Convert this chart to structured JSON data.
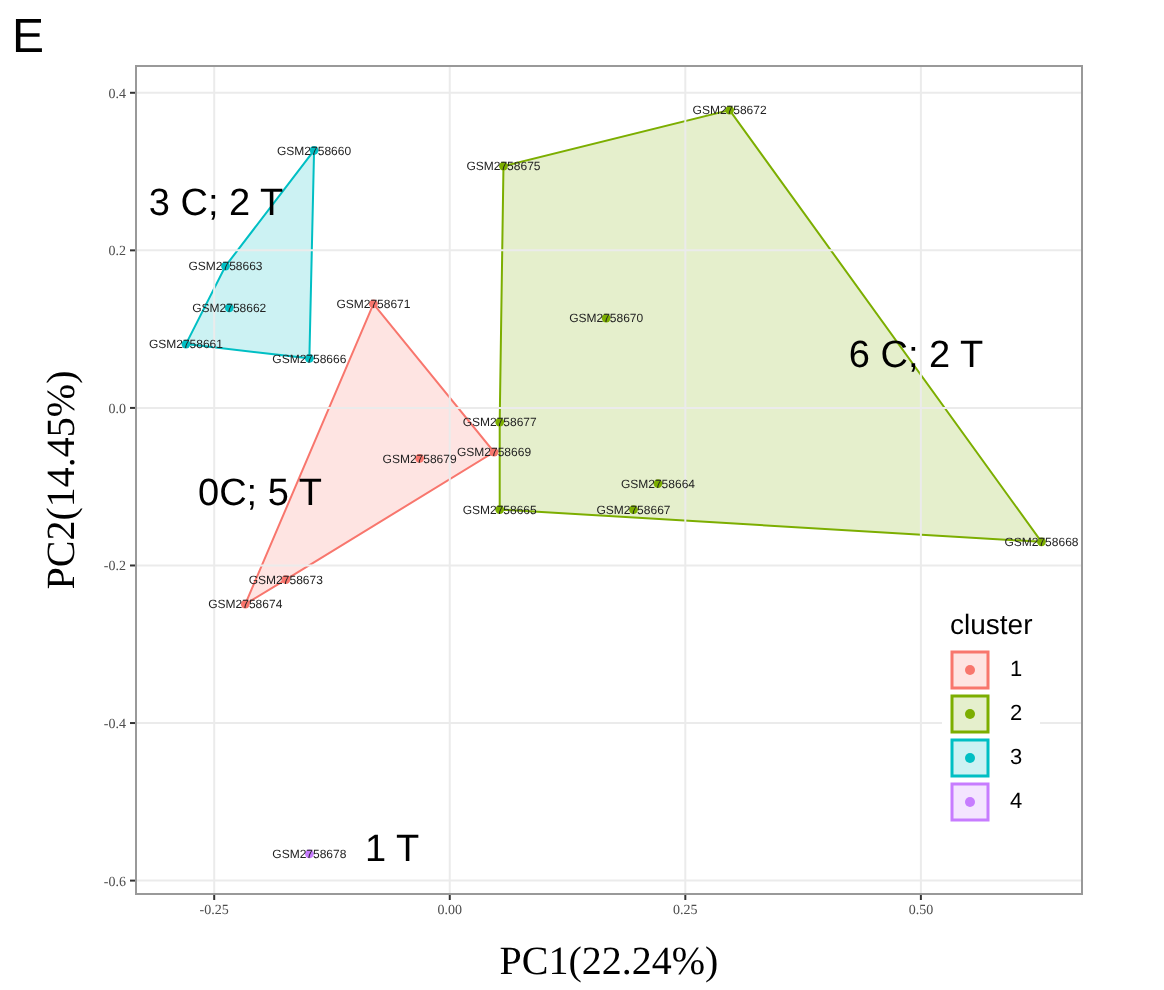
{
  "chart_data": {
    "type": "scatter",
    "xlabel": "PC1(22.24%)",
    "ylabel": "PC2(14.45%)",
    "legend_title": "cluster",
    "legend": "bottom right",
    "grid": true,
    "marker": "circle",
    "xlim": [
      -0.333,
      0.671
    ],
    "ylim": [
      -0.617,
      0.434
    ],
    "xticks": [
      {
        "value": -0.25,
        "label": "-0.25"
      },
      {
        "value": 0,
        "label": "0.00"
      },
      {
        "value": 0.25,
        "label": "0.25"
      },
      {
        "value": 0.5,
        "label": "0.50"
      }
    ],
    "yticks": [
      0.4,
      0.2,
      {
        "value": 0,
        "label": "0.0"
      },
      -0.2,
      -0.4,
      -0.6
    ],
    "series": [
      {
        "name": "1",
        "color": "#f8766d",
        "x": [
          -0.081,
          -0.032,
          0.047,
          -0.174,
          -0.217
        ],
        "values": [
          0.132,
          -0.064,
          -0.056,
          -0.218,
          -0.249
        ],
        "value_labels": [
          "GSM2758671",
          "GSM2758679",
          "GSM2758669",
          "GSM2758673",
          "GSM2758674"
        ]
      },
      {
        "name": "2",
        "color": "#7cae00",
        "x": [
          0.297,
          0.057,
          0.166,
          0.053,
          0.221,
          0.053,
          0.195,
          0.628
        ],
        "values": [
          0.378,
          0.307,
          0.114,
          -0.018,
          -0.096,
          -0.129,
          -0.129,
          -0.17
        ],
        "value_labels": [
          "GSM2758672",
          "GSM2758675",
          "GSM2758670",
          "GSM2758677",
          "GSM2758664",
          "GSM2758665",
          "GSM2758667",
          "GSM2758668"
        ]
      },
      {
        "name": "3",
        "color": "#00bfc4",
        "x": [
          -0.144,
          -0.238,
          -0.234,
          -0.28,
          -0.149
        ],
        "values": [
          0.327,
          0.18,
          0.127,
          0.081,
          0.063
        ],
        "value_labels": [
          "GSM2758660",
          "GSM2758663",
          "GSM2758662",
          "GSM2758661",
          "GSM2758666"
        ]
      },
      {
        "name": "4",
        "color": "#c77cff",
        "x": [
          -0.149
        ],
        "values": [
          -0.566
        ],
        "value_labels": [
          "GSM2758678"
        ]
      }
    ],
    "annotations": [
      "E",
      "3 C; 2 T",
      "6 C; 2 T",
      "0C; 5 T",
      "1 T"
    ]
  }
}
